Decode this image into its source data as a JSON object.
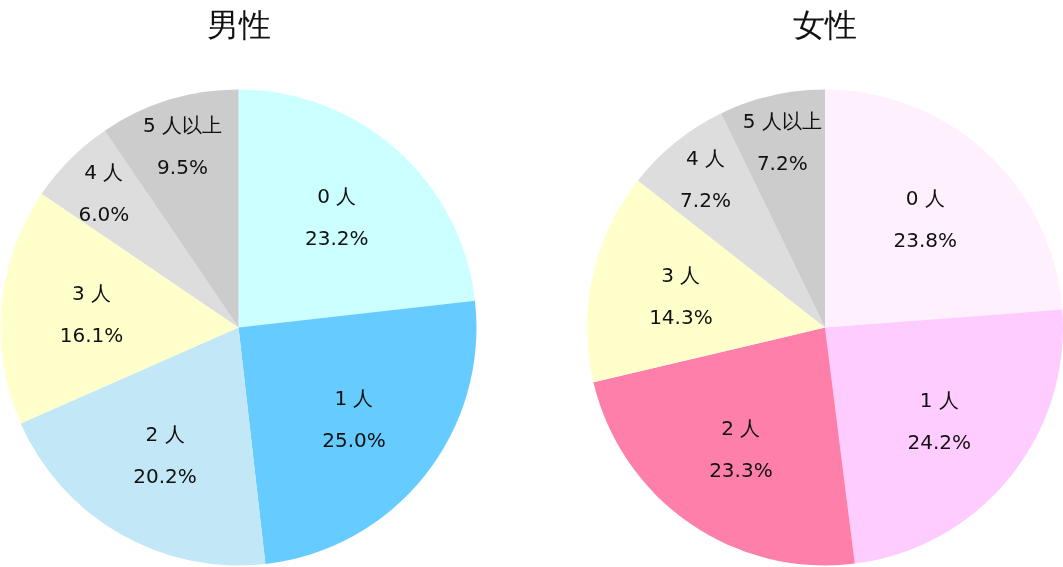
{
  "chart_data": [
    {
      "type": "pie",
      "title": "男性",
      "categories": [
        "0 人",
        "1 人",
        "2 人",
        "3 人",
        "4 人",
        "5 人以上"
      ],
      "values": [
        23.2,
        25.0,
        20.2,
        16.1,
        6.0,
        9.5
      ],
      "colors": [
        "#ccffff",
        "#66ccff",
        "#c2e7f6",
        "#ffffcc",
        "#dddddd",
        "#cccccc"
      ],
      "value_labels": [
        "23.2%",
        "25.0%",
        "20.2%",
        "16.1%",
        "6.0%",
        "9.5%"
      ]
    },
    {
      "type": "pie",
      "title": "女性",
      "categories": [
        "0 人",
        "1 人",
        "2 人",
        "3 人",
        "4 人",
        "5 人以上"
      ],
      "values": [
        23.8,
        24.2,
        23.3,
        14.3,
        7.2,
        7.2
      ],
      "colors": [
        "#fff0fd",
        "#ffccff",
        "#ff7fab",
        "#ffffcc",
        "#dddddd",
        "#cccccc"
      ],
      "value_labels": [
        "23.8%",
        "24.2%",
        "23.3%",
        "14.3%",
        "7.2%",
        "7.2%"
      ]
    }
  ]
}
